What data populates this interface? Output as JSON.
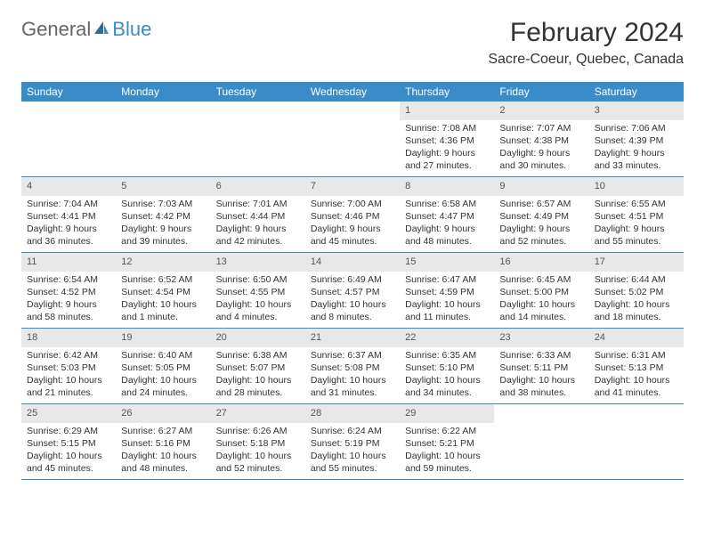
{
  "logo": {
    "text1": "General",
    "text2": "Blue"
  },
  "title": "February 2024",
  "location": "Sacre-Coeur, Quebec, Canada",
  "colors": {
    "header_bar": "#3a8cc9",
    "daynum_bg": "#e8e8e8",
    "text": "#333333",
    "logo_gray": "#666666",
    "logo_blue": "#3a8cc9"
  },
  "weekdays": [
    "Sunday",
    "Monday",
    "Tuesday",
    "Wednesday",
    "Thursday",
    "Friday",
    "Saturday"
  ],
  "weeks": [
    [
      {
        "empty": true
      },
      {
        "empty": true
      },
      {
        "empty": true
      },
      {
        "empty": true
      },
      {
        "day": "1",
        "sunrise": "Sunrise: 7:08 AM",
        "sunset": "Sunset: 4:36 PM",
        "daylight": "Daylight: 9 hours and 27 minutes."
      },
      {
        "day": "2",
        "sunrise": "Sunrise: 7:07 AM",
        "sunset": "Sunset: 4:38 PM",
        "daylight": "Daylight: 9 hours and 30 minutes."
      },
      {
        "day": "3",
        "sunrise": "Sunrise: 7:06 AM",
        "sunset": "Sunset: 4:39 PM",
        "daylight": "Daylight: 9 hours and 33 minutes."
      }
    ],
    [
      {
        "day": "4",
        "sunrise": "Sunrise: 7:04 AM",
        "sunset": "Sunset: 4:41 PM",
        "daylight": "Daylight: 9 hours and 36 minutes."
      },
      {
        "day": "5",
        "sunrise": "Sunrise: 7:03 AM",
        "sunset": "Sunset: 4:42 PM",
        "daylight": "Daylight: 9 hours and 39 minutes."
      },
      {
        "day": "6",
        "sunrise": "Sunrise: 7:01 AM",
        "sunset": "Sunset: 4:44 PM",
        "daylight": "Daylight: 9 hours and 42 minutes."
      },
      {
        "day": "7",
        "sunrise": "Sunrise: 7:00 AM",
        "sunset": "Sunset: 4:46 PM",
        "daylight": "Daylight: 9 hours and 45 minutes."
      },
      {
        "day": "8",
        "sunrise": "Sunrise: 6:58 AM",
        "sunset": "Sunset: 4:47 PM",
        "daylight": "Daylight: 9 hours and 48 minutes."
      },
      {
        "day": "9",
        "sunrise": "Sunrise: 6:57 AM",
        "sunset": "Sunset: 4:49 PM",
        "daylight": "Daylight: 9 hours and 52 minutes."
      },
      {
        "day": "10",
        "sunrise": "Sunrise: 6:55 AM",
        "sunset": "Sunset: 4:51 PM",
        "daylight": "Daylight: 9 hours and 55 minutes."
      }
    ],
    [
      {
        "day": "11",
        "sunrise": "Sunrise: 6:54 AM",
        "sunset": "Sunset: 4:52 PM",
        "daylight": "Daylight: 9 hours and 58 minutes."
      },
      {
        "day": "12",
        "sunrise": "Sunrise: 6:52 AM",
        "sunset": "Sunset: 4:54 PM",
        "daylight": "Daylight: 10 hours and 1 minute."
      },
      {
        "day": "13",
        "sunrise": "Sunrise: 6:50 AM",
        "sunset": "Sunset: 4:55 PM",
        "daylight": "Daylight: 10 hours and 4 minutes."
      },
      {
        "day": "14",
        "sunrise": "Sunrise: 6:49 AM",
        "sunset": "Sunset: 4:57 PM",
        "daylight": "Daylight: 10 hours and 8 minutes."
      },
      {
        "day": "15",
        "sunrise": "Sunrise: 6:47 AM",
        "sunset": "Sunset: 4:59 PM",
        "daylight": "Daylight: 10 hours and 11 minutes."
      },
      {
        "day": "16",
        "sunrise": "Sunrise: 6:45 AM",
        "sunset": "Sunset: 5:00 PM",
        "daylight": "Daylight: 10 hours and 14 minutes."
      },
      {
        "day": "17",
        "sunrise": "Sunrise: 6:44 AM",
        "sunset": "Sunset: 5:02 PM",
        "daylight": "Daylight: 10 hours and 18 minutes."
      }
    ],
    [
      {
        "day": "18",
        "sunrise": "Sunrise: 6:42 AM",
        "sunset": "Sunset: 5:03 PM",
        "daylight": "Daylight: 10 hours and 21 minutes."
      },
      {
        "day": "19",
        "sunrise": "Sunrise: 6:40 AM",
        "sunset": "Sunset: 5:05 PM",
        "daylight": "Daylight: 10 hours and 24 minutes."
      },
      {
        "day": "20",
        "sunrise": "Sunrise: 6:38 AM",
        "sunset": "Sunset: 5:07 PM",
        "daylight": "Daylight: 10 hours and 28 minutes."
      },
      {
        "day": "21",
        "sunrise": "Sunrise: 6:37 AM",
        "sunset": "Sunset: 5:08 PM",
        "daylight": "Daylight: 10 hours and 31 minutes."
      },
      {
        "day": "22",
        "sunrise": "Sunrise: 6:35 AM",
        "sunset": "Sunset: 5:10 PM",
        "daylight": "Daylight: 10 hours and 34 minutes."
      },
      {
        "day": "23",
        "sunrise": "Sunrise: 6:33 AM",
        "sunset": "Sunset: 5:11 PM",
        "daylight": "Daylight: 10 hours and 38 minutes."
      },
      {
        "day": "24",
        "sunrise": "Sunrise: 6:31 AM",
        "sunset": "Sunset: 5:13 PM",
        "daylight": "Daylight: 10 hours and 41 minutes."
      }
    ],
    [
      {
        "day": "25",
        "sunrise": "Sunrise: 6:29 AM",
        "sunset": "Sunset: 5:15 PM",
        "daylight": "Daylight: 10 hours and 45 minutes."
      },
      {
        "day": "26",
        "sunrise": "Sunrise: 6:27 AM",
        "sunset": "Sunset: 5:16 PM",
        "daylight": "Daylight: 10 hours and 48 minutes."
      },
      {
        "day": "27",
        "sunrise": "Sunrise: 6:26 AM",
        "sunset": "Sunset: 5:18 PM",
        "daylight": "Daylight: 10 hours and 52 minutes."
      },
      {
        "day": "28",
        "sunrise": "Sunrise: 6:24 AM",
        "sunset": "Sunset: 5:19 PM",
        "daylight": "Daylight: 10 hours and 55 minutes."
      },
      {
        "day": "29",
        "sunrise": "Sunrise: 6:22 AM",
        "sunset": "Sunset: 5:21 PM",
        "daylight": "Daylight: 10 hours and 59 minutes."
      },
      {
        "empty": true
      },
      {
        "empty": true
      }
    ]
  ]
}
